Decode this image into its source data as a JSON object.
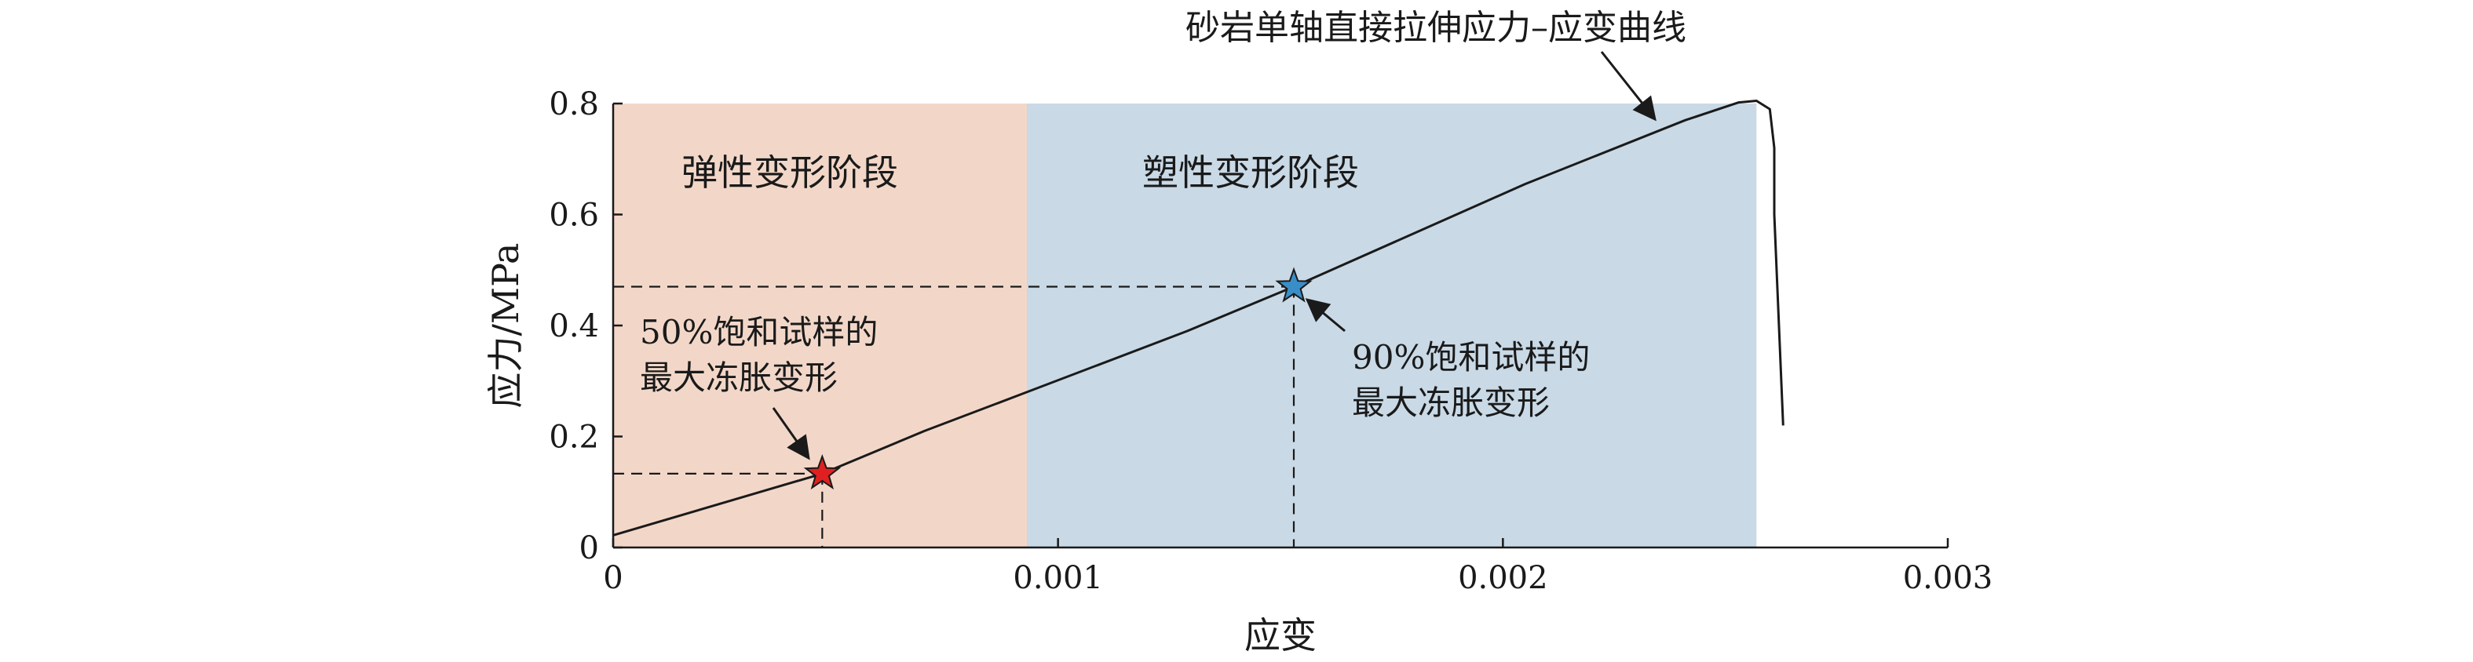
{
  "chart_data": {
    "type": "line",
    "title": "",
    "xlabel": "应变",
    "ylabel": "应力/MPa",
    "xlim": [
      0,
      0.003
    ],
    "ylim": [
      0,
      0.8
    ],
    "x_ticks": [
      0,
      0.001,
      0.002,
      0.003
    ],
    "x_tick_labels": [
      "0",
      "0.001",
      "0.002",
      "0.003"
    ],
    "y_ticks": [
      0,
      0.2,
      0.4,
      0.6,
      0.8
    ],
    "y_tick_labels": [
      "0",
      "0.2",
      "0.4",
      "0.6",
      "0.8"
    ],
    "grid": false,
    "series": [
      {
        "name": "砂岩单轴直接拉伸应力–应变曲线",
        "x": [
          0,
          0.00047,
          0.0007,
          0.00093,
          0.00129,
          0.00153,
          0.00205,
          0.00241,
          0.00253,
          0.00257,
          0.0026,
          0.00261,
          0.00261,
          0.00263
        ],
        "y": [
          0.022,
          0.133,
          0.21,
          0.28,
          0.39,
          0.47,
          0.655,
          0.77,
          0.802,
          0.805,
          0.79,
          0.72,
          0.6,
          0.22
        ],
        "color": "#1a1a1a"
      }
    ],
    "regions": [
      {
        "label": "弹性变形阶段",
        "x_start": 0,
        "x_end": 0.00093,
        "color": "#f2d7c8"
      },
      {
        "label": "塑性变形阶段",
        "x_start": 0.00093,
        "x_end": 0.00257,
        "color": "#c9d9e6"
      }
    ],
    "points": [
      {
        "x": 0.00047,
        "y": 0.133,
        "marker": "star",
        "color": "#e02020",
        "annotation": [
          "50%饱和试样的",
          "最大冻胀变形"
        ]
      },
      {
        "x": 0.00153,
        "y": 0.47,
        "marker": "star",
        "color": "#3a8ec8",
        "annotation": [
          "90%饱和试样的",
          "最大冻胀变形"
        ]
      }
    ],
    "curve_label": "砂岩单轴直接拉伸应力–应变曲线"
  }
}
